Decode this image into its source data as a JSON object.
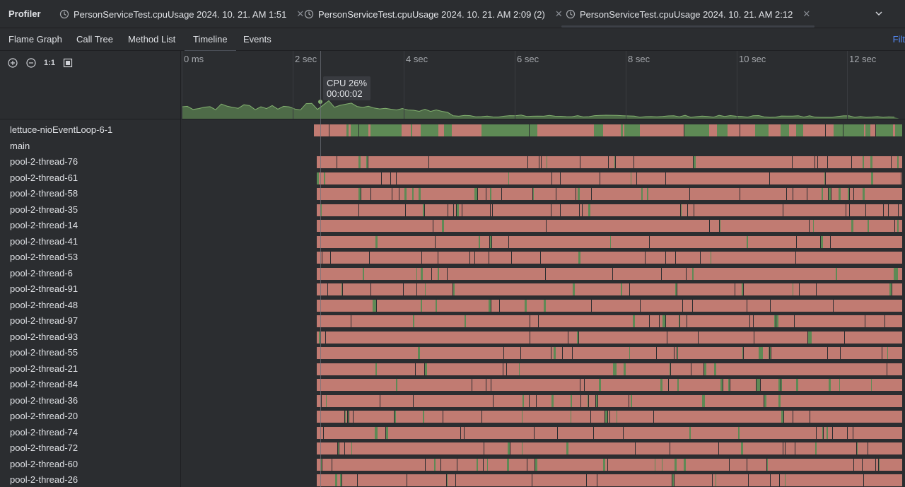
{
  "toolwindow": {
    "title": "Profiler"
  },
  "tabs": [
    {
      "label": "PersonServiceTest.cpuUsage 2024. 10. 21. AM 1:51",
      "active": false
    },
    {
      "label": "PersonServiceTest.cpuUsage 2024. 10. 21. AM 2:09 (2)",
      "active": false
    },
    {
      "label": "PersonServiceTest.cpuUsage 2024. 10. 21. AM 2:12",
      "active": true
    }
  ],
  "subtabs": [
    {
      "label": "Flame Graph"
    },
    {
      "label": "Call Tree"
    },
    {
      "label": "Method List"
    },
    {
      "label": "Timeline",
      "active": true
    },
    {
      "label": "Events"
    }
  ],
  "filter_label": "Filt",
  "zoom": {
    "actual_size_label": "1:1"
  },
  "ticks": [
    "0 ms",
    "2 sec",
    "4 sec",
    "6 sec",
    "8 sec",
    "10 sec",
    "12 sec"
  ],
  "cpu_tooltip": {
    "cpu": "CPU 26%",
    "time": "00:00:02"
  },
  "threads": [
    "lettuce-nioEventLoop-6-1",
    "main",
    "pool-2-thread-76",
    "pool-2-thread-61",
    "pool-2-thread-58",
    "pool-2-thread-35",
    "pool-2-thread-14",
    "pool-2-thread-41",
    "pool-2-thread-53",
    "pool-2-thread-6",
    "pool-2-thread-91",
    "pool-2-thread-48",
    "pool-2-thread-97",
    "pool-2-thread-93",
    "pool-2-thread-55",
    "pool-2-thread-21",
    "pool-2-thread-84",
    "pool-2-thread-36",
    "pool-2-thread-20",
    "pool-2-thread-74",
    "pool-2-thread-72",
    "pool-2-thread-60",
    "pool-2-thread-26"
  ],
  "colors": {
    "running": "#5e8a55",
    "waiting": "#c17b72",
    "cpu_fill": "#4e6b48",
    "cpu_line": "#82b06f",
    "background": "#2b2d30"
  }
}
